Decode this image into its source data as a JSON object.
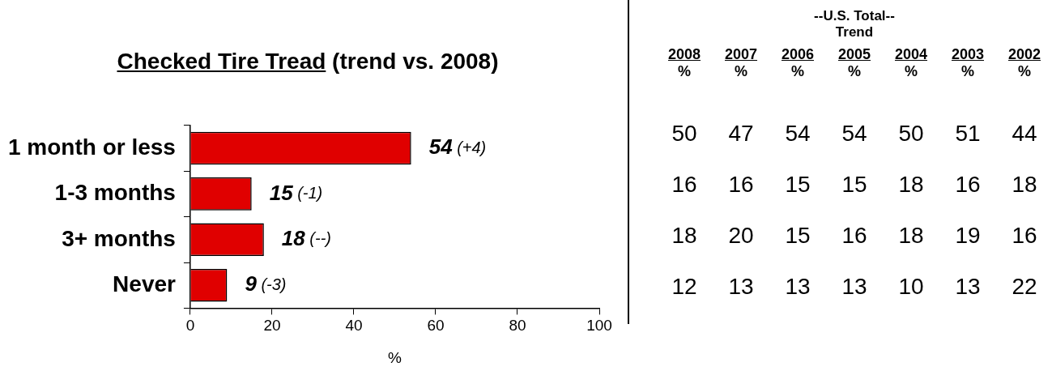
{
  "chart_data": [
    {
      "type": "bar",
      "orientation": "horizontal",
      "title": "Checked Tire Tread (trend vs. 2008)",
      "xlabel": "%",
      "categories": [
        "1 month or less",
        "1-3 months",
        "3+ months",
        "Never"
      ],
      "values": [
        54,
        15,
        18,
        9
      ],
      "color": "#e00000",
      "value_labels": [
        "54 (+4)",
        "15 (-1)",
        "18 (--)",
        "9 (-3)"
      ],
      "xlim": [
        0,
        100
      ],
      "xticks": [
        0,
        20,
        40,
        60,
        80,
        100
      ],
      "grid": false,
      "legend": false
    },
    {
      "type": "heatmap",
      "title": "--U.S. Total--",
      "subtitle": "Trend",
      "y_categories": [
        null,
        null,
        null,
        null
      ],
      "data_labels": true,
      "categories": [
        "2008 %",
        "2007 %",
        "2006 %",
        "2005 %",
        "2004 %",
        "2003 %",
        "2002 %"
      ],
      "cells": [
        [
          50,
          47,
          54,
          54,
          50,
          51,
          44
        ],
        [
          16,
          16,
          15,
          15,
          18,
          16,
          18
        ],
        [
          18,
          20,
          15,
          16,
          18,
          19,
          16
        ],
        [
          12,
          13,
          13,
          13,
          10,
          13,
          22
        ]
      ]
    }
  ]
}
